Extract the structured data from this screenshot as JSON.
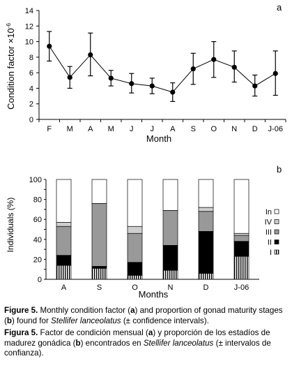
{
  "chart_data": [
    {
      "type": "line",
      "panel_label": "a",
      "ylabel": "Condition factor ×10",
      "ylabel_sup": "-6",
      "xlabel": "Month",
      "ylim": [
        0,
        14
      ],
      "yticks": [
        0,
        2,
        4,
        6,
        8,
        10,
        12,
        14
      ],
      "categories": [
        "F",
        "M",
        "A",
        "M",
        "J",
        "J",
        "A",
        "S",
        "O",
        "N",
        "D",
        "J-06"
      ],
      "values": [
        9.4,
        5.4,
        8.3,
        5.3,
        4.6,
        4.3,
        3.5,
        6.5,
        7.7,
        6.7,
        4.3,
        5.9
      ],
      "err_upper": [
        11.3,
        6.8,
        11.1,
        6.3,
        5.9,
        5.3,
        4.7,
        8.5,
        10.0,
        8.8,
        5.7,
        8.8
      ],
      "err_lower": [
        7.5,
        4.0,
        5.6,
        4.3,
        3.4,
        3.3,
        2.3,
        4.5,
        5.4,
        4.8,
        3.0,
        3.1
      ],
      "grid": false
    },
    {
      "type": "bar",
      "stacked": true,
      "panel_label": "b",
      "ylabel": "Individuals (%)",
      "xlabel": "Months",
      "ylim": [
        0,
        100
      ],
      "yticks": [
        0,
        10,
        20,
        30,
        40,
        50,
        60,
        70,
        80,
        90,
        100
      ],
      "categories": [
        "A",
        "S",
        "O",
        "N",
        "D",
        "J-06"
      ],
      "series": [
        {
          "name": "I",
          "values": [
            14,
            11,
            4,
            9,
            6,
            23
          ]
        },
        {
          "name": "II",
          "values": [
            10,
            2,
            13,
            25,
            42,
            15
          ]
        },
        {
          "name": "III",
          "values": [
            29,
            63,
            29,
            35,
            20,
            6
          ]
        },
        {
          "name": "IV",
          "values": [
            4,
            0,
            7,
            0,
            4,
            2
          ]
        },
        {
          "name": "In",
          "values": [
            43,
            24,
            47,
            31,
            28,
            54
          ]
        }
      ],
      "legend_position": "right",
      "grid": false
    }
  ],
  "captions": {
    "english": {
      "fig": "Figure 5.",
      "t1": " Monthly condition factor (",
      "a": "a",
      "t2": ") and proportion of gonad maturity stages (",
      "b": "b",
      "t3": ") found for ",
      "species": "Stellifer lanceolatus",
      "t4": " (± confidence intervals)."
    },
    "spanish": {
      "fig": "Figura 5.",
      "t1": " Factor de condición mensual (",
      "a": "a",
      "t2": ") y proporción de los estadíos de madurez gonádica (",
      "b": "b",
      "t3": ") encontrados en ",
      "species": "Stellifer lanceolatus",
      "t4": " (± intervalos de confianza)."
    }
  }
}
